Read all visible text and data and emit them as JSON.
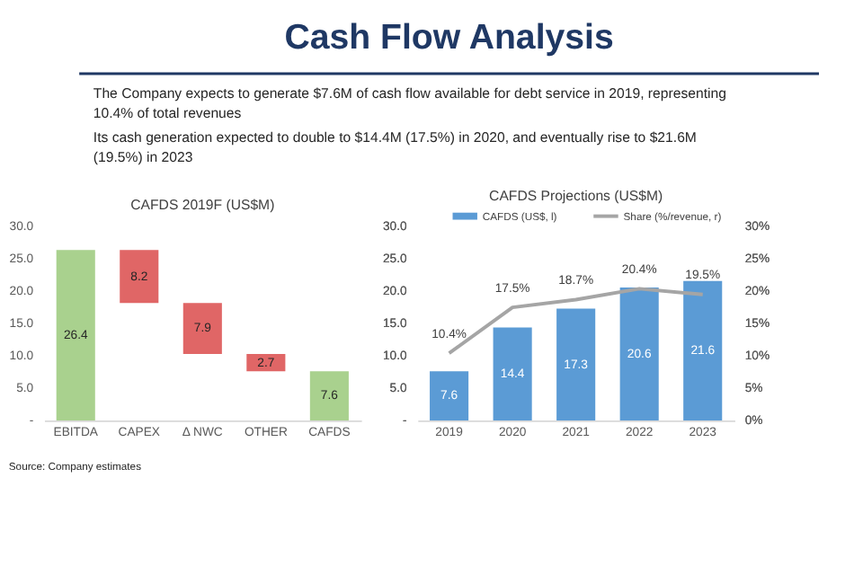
{
  "chart_data": [
    {
      "type": "other",
      "title": "Cash Flow Analysis",
      "annotations": [
        "The Company expects to generate $7.6M of cash flow available for debt service in 2019, representing 10.4% of total revenues",
        "Its cash generation expected to double to $14.4M (17.5%) in 2020, and eventually rise to $21.6M (19.5%) in 2023"
      ]
    },
    {
      "type": "bar",
      "title": "CAFDS 2019F (US$M)",
      "categories": [
        "EBITDA",
        "CAPEX",
        "Δ NWC",
        "OTHER",
        "CAFDS"
      ],
      "values": [
        26.4,
        8.2,
        7.9,
        2.7,
        7.6
      ],
      "base": [
        0,
        18.2,
        10.3,
        7.6,
        0
      ],
      "colors": [
        "#a9d18e",
        "#e06666",
        "#e06666",
        "#e06666",
        "#a9d18e"
      ],
      "ylim": [
        0,
        30
      ],
      "yticks": [
        {
          "value": 0,
          "label": "-"
        },
        {
          "value": 5,
          "label": "5.0"
        },
        {
          "value": 10,
          "label": "10.0"
        },
        {
          "value": 15,
          "label": "15.0"
        },
        {
          "value": 20,
          "label": "20.0"
        },
        {
          "value": 25,
          "label": "25.0"
        },
        {
          "value": 30,
          "label": "30.0"
        }
      ],
      "data_labels": true,
      "grid": false,
      "annotations": [
        "Source: Company estimates"
      ]
    },
    {
      "type": "bar",
      "title": "CAFDS Projections (US$M)",
      "categories": [
        "2019",
        "2020",
        "2021",
        "2022",
        "2023"
      ],
      "series": [
        {
          "name": "CAFDS (US$, l)",
          "type": "bar",
          "color": "#5b9bd5",
          "values": [
            7.6,
            14.4,
            17.3,
            20.6,
            21.6
          ]
        },
        {
          "name": "Share (%/revenue, r)",
          "type": "line",
          "axis": "y2",
          "color": "#a5a5a5",
          "values": [
            10.4,
            17.5,
            18.7,
            20.4,
            19.5
          ],
          "value_labels": [
            "10.4%",
            "17.5%",
            "18.7%",
            "20.4%",
            "19.5%"
          ]
        }
      ],
      "ylim": [
        0,
        30
      ],
      "yticks": [
        {
          "value": 0,
          "label": "-"
        },
        {
          "value": 5,
          "label": "5.0"
        },
        {
          "value": 10,
          "label": "10.0"
        },
        {
          "value": 15,
          "label": "15.0"
        },
        {
          "value": 20,
          "label": "20.0"
        },
        {
          "value": 25,
          "label": "25.0"
        },
        {
          "value": 30,
          "label": "30.0"
        }
      ],
      "y2lim": [
        0,
        30
      ],
      "y2ticks": [
        {
          "value": 0,
          "label": "0%"
        },
        {
          "value": 5,
          "label": "5%"
        },
        {
          "value": 10,
          "label": "10%"
        },
        {
          "value": 15,
          "label": "15%"
        },
        {
          "value": 20,
          "label": "20%"
        },
        {
          "value": 25,
          "label": "25%"
        },
        {
          "value": 30,
          "label": "30%"
        }
      ],
      "data_labels": true,
      "legend": "top",
      "grid": false
    }
  ]
}
